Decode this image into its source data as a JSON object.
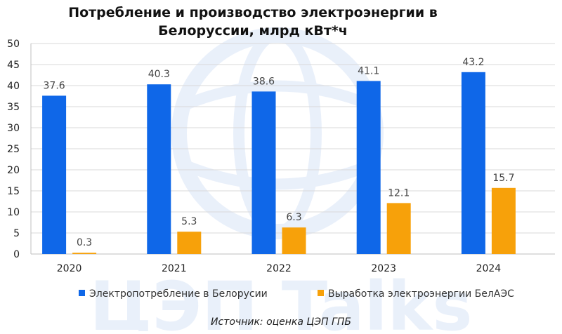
{
  "chart_data": {
    "type": "bar",
    "title_lines": [
      "Потребление и производство электроэнергии в",
      "Белоруссии, млрд кВт*ч"
    ],
    "categories": [
      "2020",
      "2021",
      "2022",
      "2023",
      "2024"
    ],
    "series": [
      {
        "name": "Электропотребление в Белорусии",
        "color": "#0f67e8",
        "values": [
          37.6,
          40.3,
          38.6,
          41.1,
          43.2
        ],
        "labels": [
          "37.6",
          "40.3",
          "38.6",
          "41.1",
          "43.2"
        ]
      },
      {
        "name": "Выработка электроэнергии БелАЭС",
        "color": "#f7a10a",
        "values": [
          0.3,
          5.3,
          6.3,
          12.1,
          15.7
        ],
        "labels": [
          "0.3",
          "5.3",
          "6.3",
          "12.1",
          "15.7"
        ]
      }
    ],
    "ylim": [
      0,
      50
    ],
    "yticks": [
      "0",
      "5",
      "10",
      "15",
      "20",
      "25",
      "30",
      "35",
      "40",
      "45",
      "50"
    ],
    "grid": true,
    "legend_position": "bottom"
  },
  "source": "Источник: оценка ЦЭП ГПБ",
  "watermark": "ЦЭП Talks"
}
